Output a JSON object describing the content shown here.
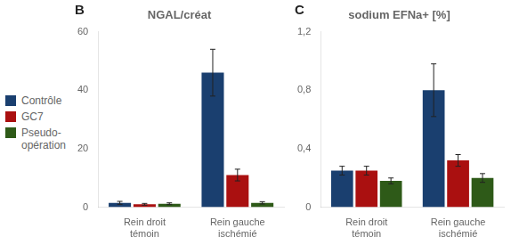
{
  "chart_data": [
    {
      "type": "bar",
      "title": "NGAL/créat",
      "annotations": [
        {
          "text": "B"
        }
      ],
      "categories": [
        "Rein droit\ntémoin",
        "Rein gauche\nischémié"
      ],
      "series": [
        {
          "name": "Contrôle",
          "color": "#1a3f6f",
          "values": [
            1.5,
            46.0
          ],
          "errors": [
            0.5,
            8.0
          ]
        },
        {
          "name": "GC7",
          "color": "#aa1010",
          "values": [
            1.0,
            11.0
          ],
          "errors": [
            0.3,
            2.0
          ]
        },
        {
          "name": "Pseudo-\nopération",
          "color": "#2e5a18",
          "values": [
            1.2,
            1.5
          ],
          "errors": [
            0.3,
            0.4
          ]
        }
      ],
      "ylim": [
        0,
        60
      ],
      "yticks": [
        0,
        20,
        40,
        60
      ],
      "grid": false,
      "legend": "left"
    },
    {
      "type": "bar",
      "title": "sodium EFNa+ [%]",
      "annotations": [
        {
          "text": "C"
        }
      ],
      "categories": [
        "Rein droit\ntémoin",
        "Rein gauche\nischémié"
      ],
      "series": [
        {
          "name": "Contrôle",
          "color": "#1a3f6f",
          "values": [
            0.25,
            0.8
          ],
          "errors": [
            0.03,
            0.18
          ]
        },
        {
          "name": "GC7",
          "color": "#aa1010",
          "values": [
            0.25,
            0.32
          ],
          "errors": [
            0.03,
            0.04
          ]
        },
        {
          "name": "Pseudo-\nopération",
          "color": "#2e5a18",
          "values": [
            0.18,
            0.2
          ],
          "errors": [
            0.02,
            0.03
          ]
        }
      ],
      "ylim": [
        0,
        1.2
      ],
      "yticks": [
        0,
        {
          "value": 0.4,
          "label": "0,4"
        },
        {
          "value": 0.8,
          "label": "0,8"
        },
        {
          "value": 1.2,
          "label": "1,2"
        }
      ],
      "grid": false
    }
  ]
}
